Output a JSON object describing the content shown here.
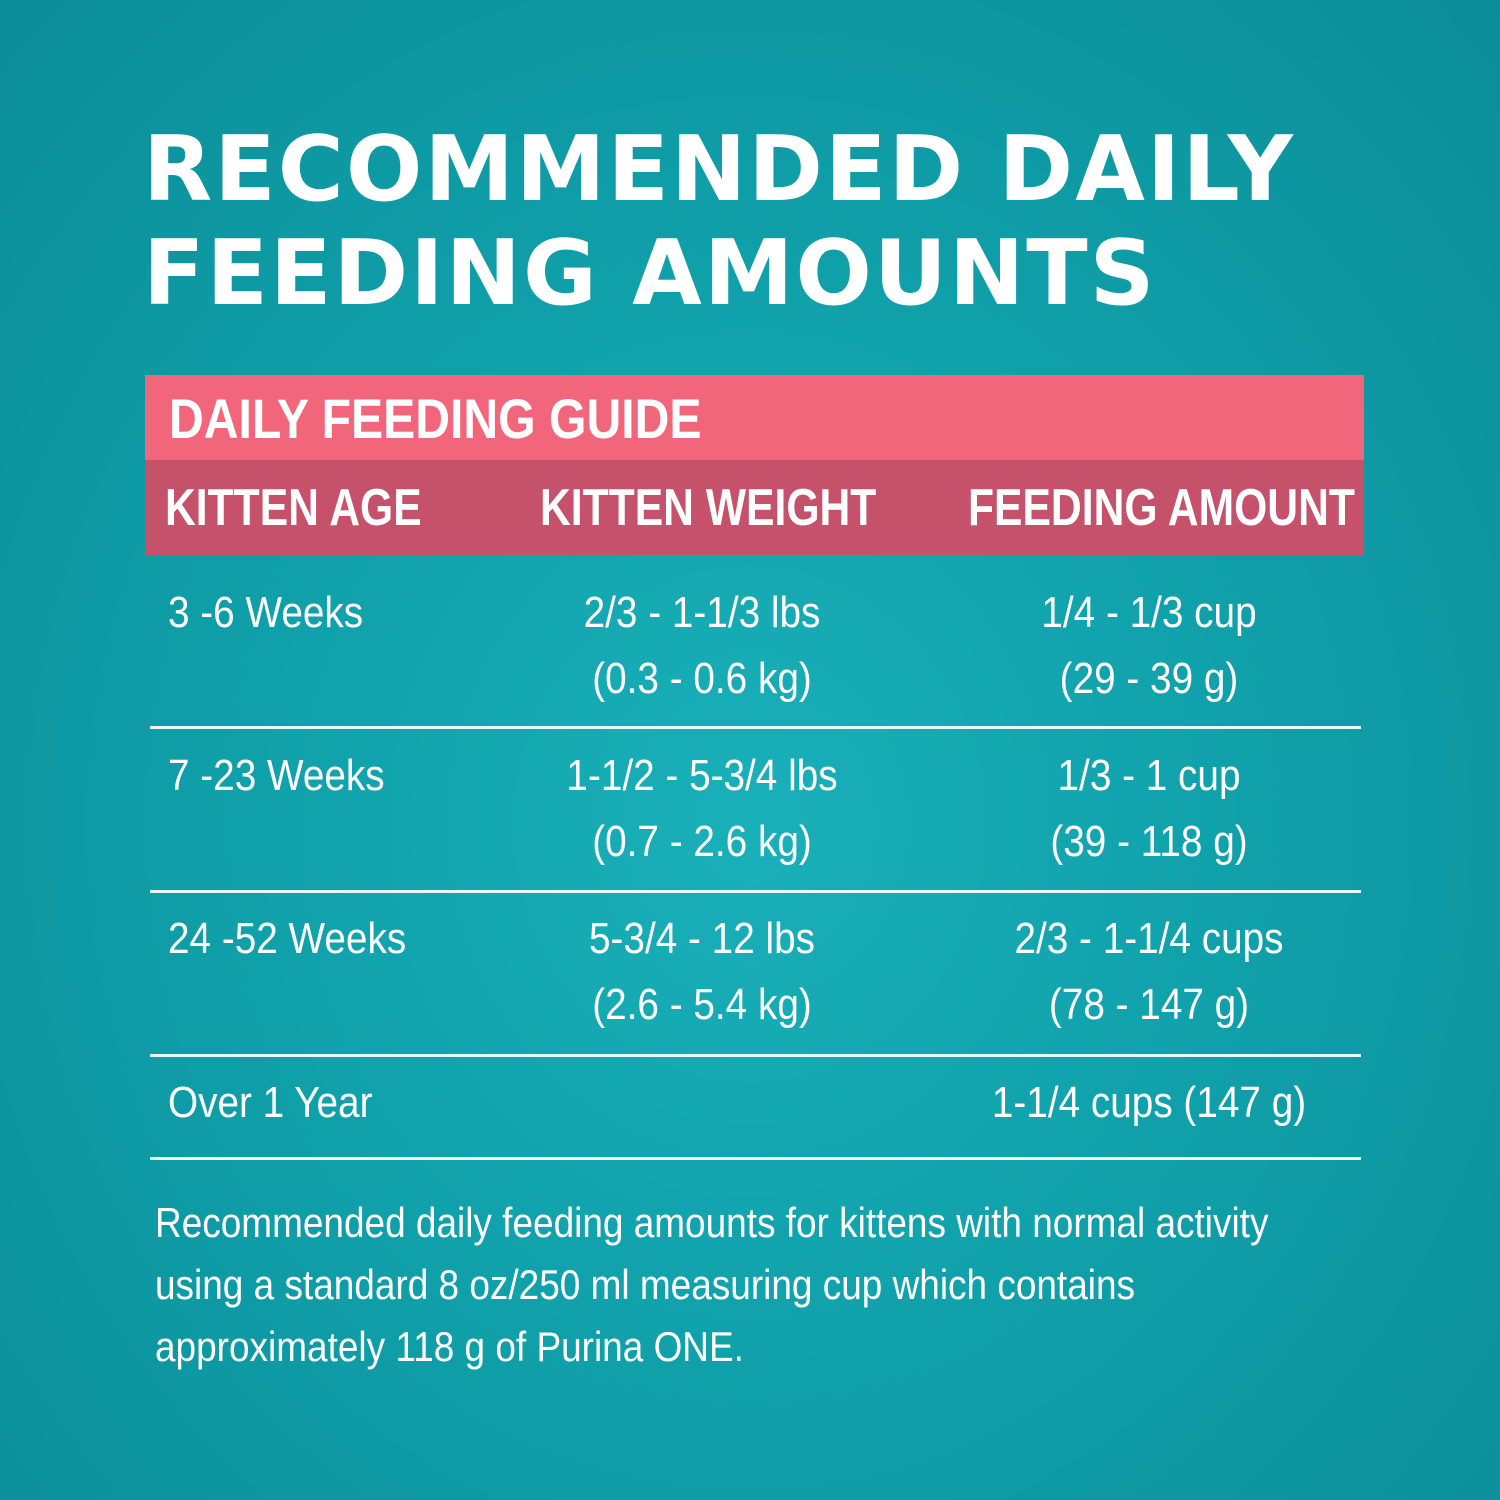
{
  "title": {
    "line1": "RECOMMENDED DAILY",
    "line2": "FEEDING AMOUNTS"
  },
  "table": {
    "caption": "DAILY FEEDING GUIDE",
    "headers": [
      "KITTEN AGE",
      "KITTEN WEIGHT",
      "FEEDING AMOUNT"
    ],
    "rows": [
      {
        "age": "3 -6 Weeks",
        "weight": [
          "2/3 - 1-1/3 lbs",
          "(0.3 - 0.6 kg)"
        ],
        "amount": [
          "1/4 - 1/3 cup",
          "(29 - 39 g)"
        ]
      },
      {
        "age": "7 -23 Weeks",
        "weight": [
          "1-1/2 - 5-3/4 lbs",
          "(0.7 - 2.6 kg)"
        ],
        "amount": [
          "1/3 - 1 cup",
          "(39 - 118 g)"
        ]
      },
      {
        "age": "24 -52 Weeks",
        "weight": [
          "5-3/4 - 12 lbs",
          "(2.6 - 5.4 kg)"
        ],
        "amount": [
          "2/3 - 1-1/4 cups",
          "(78 - 147 g)"
        ]
      },
      {
        "age": "Over 1 Year",
        "weight": [
          "",
          ""
        ],
        "amount": [
          "1-1/4 cups (147 g)",
          ""
        ]
      }
    ]
  },
  "note": [
    "Recommended daily feeding amounts for kittens with normal activity",
    "using a standard 8 oz/250 ml measuring cup which contains",
    "approximately 118 g of Purina ONE."
  ],
  "colors": {
    "background": "#10a1ab",
    "caption_bar": "#f1667a",
    "header_bar": "#c6516a",
    "text": "#ffffff"
  }
}
